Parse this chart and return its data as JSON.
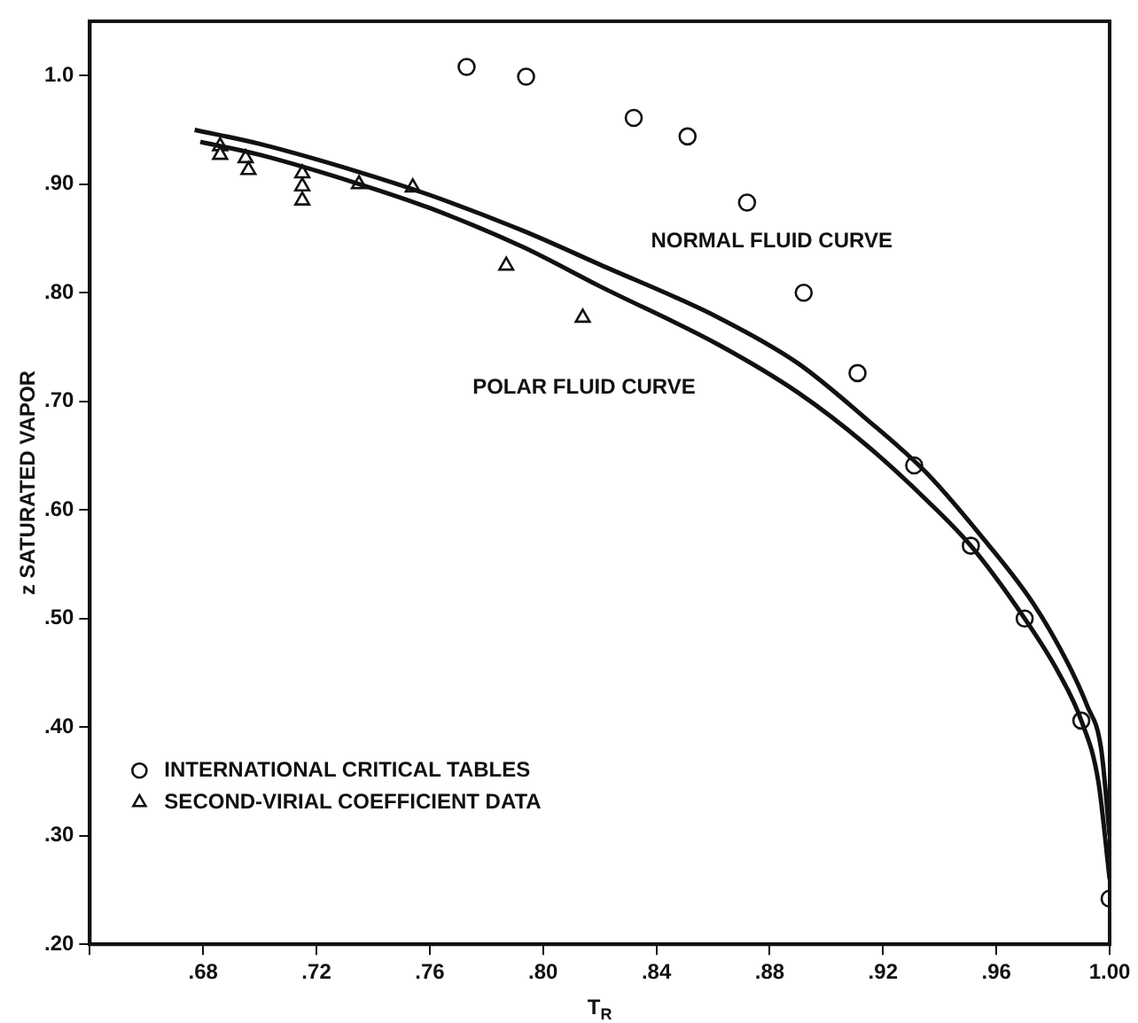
{
  "chart_data": {
    "type": "scatter",
    "xlabel": "T$_{R}$",
    "ylabel": "z SATURATED VAPOR",
    "xlim": [
      0.64,
      1.0
    ],
    "ylim": [
      0.2,
      1.05
    ],
    "xticks": [
      {
        "value": 0.64,
        "label": null
      },
      {
        "value": 0.68,
        "label": ".68"
      },
      {
        "value": 0.72,
        "label": ".72"
      },
      {
        "value": 0.76,
        "label": ".76"
      },
      {
        "value": 0.8,
        "label": ".80"
      },
      {
        "value": 0.84,
        "label": ".84"
      },
      {
        "value": 0.88,
        "label": ".88"
      },
      {
        "value": 0.92,
        "label": ".92"
      },
      {
        "value": 0.96,
        "label": ".96"
      },
      {
        "value": 1.0,
        "label": "1.00"
      }
    ],
    "yticks": [
      {
        "value": 0.2,
        "label": ".20"
      },
      {
        "value": 0.3,
        "label": ".30"
      },
      {
        "value": 0.4,
        "label": ".40"
      },
      {
        "value": 0.5,
        "label": ".50"
      },
      {
        "value": 0.6,
        "label": ".60"
      },
      {
        "value": 0.7,
        "label": ".70"
      },
      {
        "value": 0.8,
        "label": ".80"
      },
      {
        "value": 0.9,
        "label": ".90"
      },
      {
        "value": 1.0,
        "label": "1.0"
      }
    ],
    "grid": false,
    "legend": "bottom left",
    "series": [
      {
        "type": "line",
        "name": "NORMAL FLUID CURVE",
        "color": "#111111",
        "marker": "none",
        "line_style": "solid",
        "x": [
          0.677,
          0.7,
          0.734,
          0.76,
          0.793,
          0.82,
          0.862,
          0.89,
          0.914,
          0.935,
          0.954,
          0.973,
          0.985,
          0.992,
          0.997,
          1.0
        ],
        "values": [
          0.95,
          0.937,
          0.912,
          0.89,
          0.857,
          0.826,
          0.777,
          0.735,
          0.684,
          0.635,
          0.578,
          0.514,
          0.46,
          0.42,
          0.38,
          0.3
        ]
      },
      {
        "type": "line",
        "name": "POLAR FLUID CURVE",
        "color": "#111111",
        "marker": "none",
        "line_style": "solid",
        "x": [
          0.679,
          0.7,
          0.734,
          0.76,
          0.793,
          0.82,
          0.862,
          0.89,
          0.914,
          0.935,
          0.951,
          0.97,
          0.982,
          0.99,
          0.996,
          1.0
        ],
        "values": [
          0.939,
          0.927,
          0.901,
          0.878,
          0.842,
          0.806,
          0.752,
          0.708,
          0.66,
          0.61,
          0.567,
          0.5,
          0.45,
          0.406,
          0.35,
          0.26
        ]
      },
      {
        "name": "INTERNATIONAL CRITICAL TABLES",
        "color": "#111111",
        "marker": "circle",
        "x": [
          0.773,
          0.794,
          0.832,
          0.851,
          0.872,
          0.892,
          0.911,
          0.931,
          0.951,
          0.97,
          0.99,
          1.0
        ],
        "values": [
          1.008,
          0.999,
          0.961,
          0.944,
          0.883,
          0.8,
          0.726,
          0.641,
          0.567,
          0.5,
          0.406,
          0.242
        ]
      },
      {
        "name": "SECOND-VIRIAL COEFFICIENT DATA",
        "color": "#111111",
        "marker": "triangle",
        "x": [
          0.686,
          0.686,
          0.695,
          0.696,
          0.715,
          0.715,
          0.715,
          0.735,
          0.754,
          0.787,
          0.814
        ],
        "values": [
          0.935,
          0.927,
          0.924,
          0.913,
          0.91,
          0.898,
          0.885,
          0.9,
          0.897,
          0.825,
          0.777
        ]
      }
    ]
  }
}
